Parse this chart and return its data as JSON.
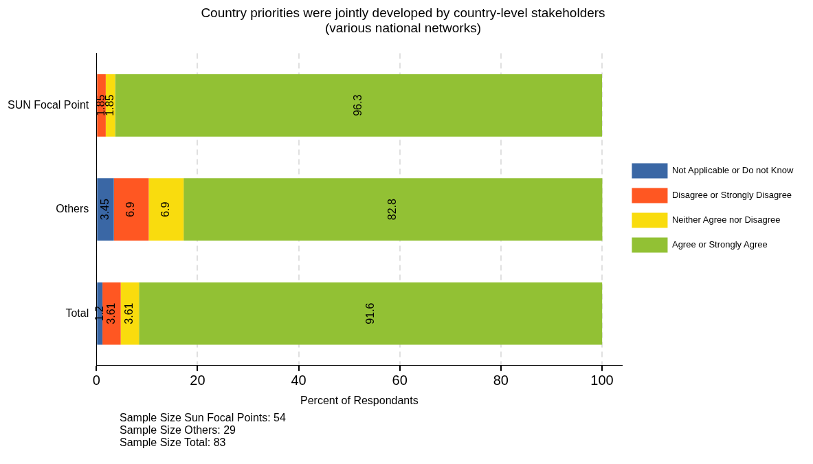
{
  "chart_data": {
    "type": "bar",
    "orientation": "horizontal",
    "stacked": true,
    "title": "Country priorities were jointly developed by country-level stakeholders\n(various national networks)",
    "xlabel": "Percent of Respondants",
    "categories": [
      "SUN Focal Point",
      "Others",
      "Total"
    ],
    "series": [
      {
        "name": "Not Applicable or Do not Know",
        "color": "#3a67a5",
        "values": [
          null,
          3.45,
          1.2
        ]
      },
      {
        "name": "Disagree or Strongly Disagree",
        "color": "#ff5722",
        "values": [
          1.85,
          6.9,
          3.61
        ]
      },
      {
        "name": "Neither Agree nor Disagree",
        "color": "#f9dc0e",
        "values": [
          1.85,
          6.9,
          3.61
        ]
      },
      {
        "name": "Agree or Strongly Agree",
        "color": "#92c134",
        "values": [
          96.3,
          82.8,
          91.6
        ]
      }
    ],
    "xlim": [
      0,
      104
    ],
    "xticks": [
      0,
      20,
      40,
      60,
      80,
      100
    ],
    "grid": "x",
    "legend": "right",
    "data_labels": true,
    "annotations": [
      "Sample Size Sun Focal Points: 54",
      "Sample Size Others: 29",
      "Sample Size Total: 83"
    ]
  }
}
